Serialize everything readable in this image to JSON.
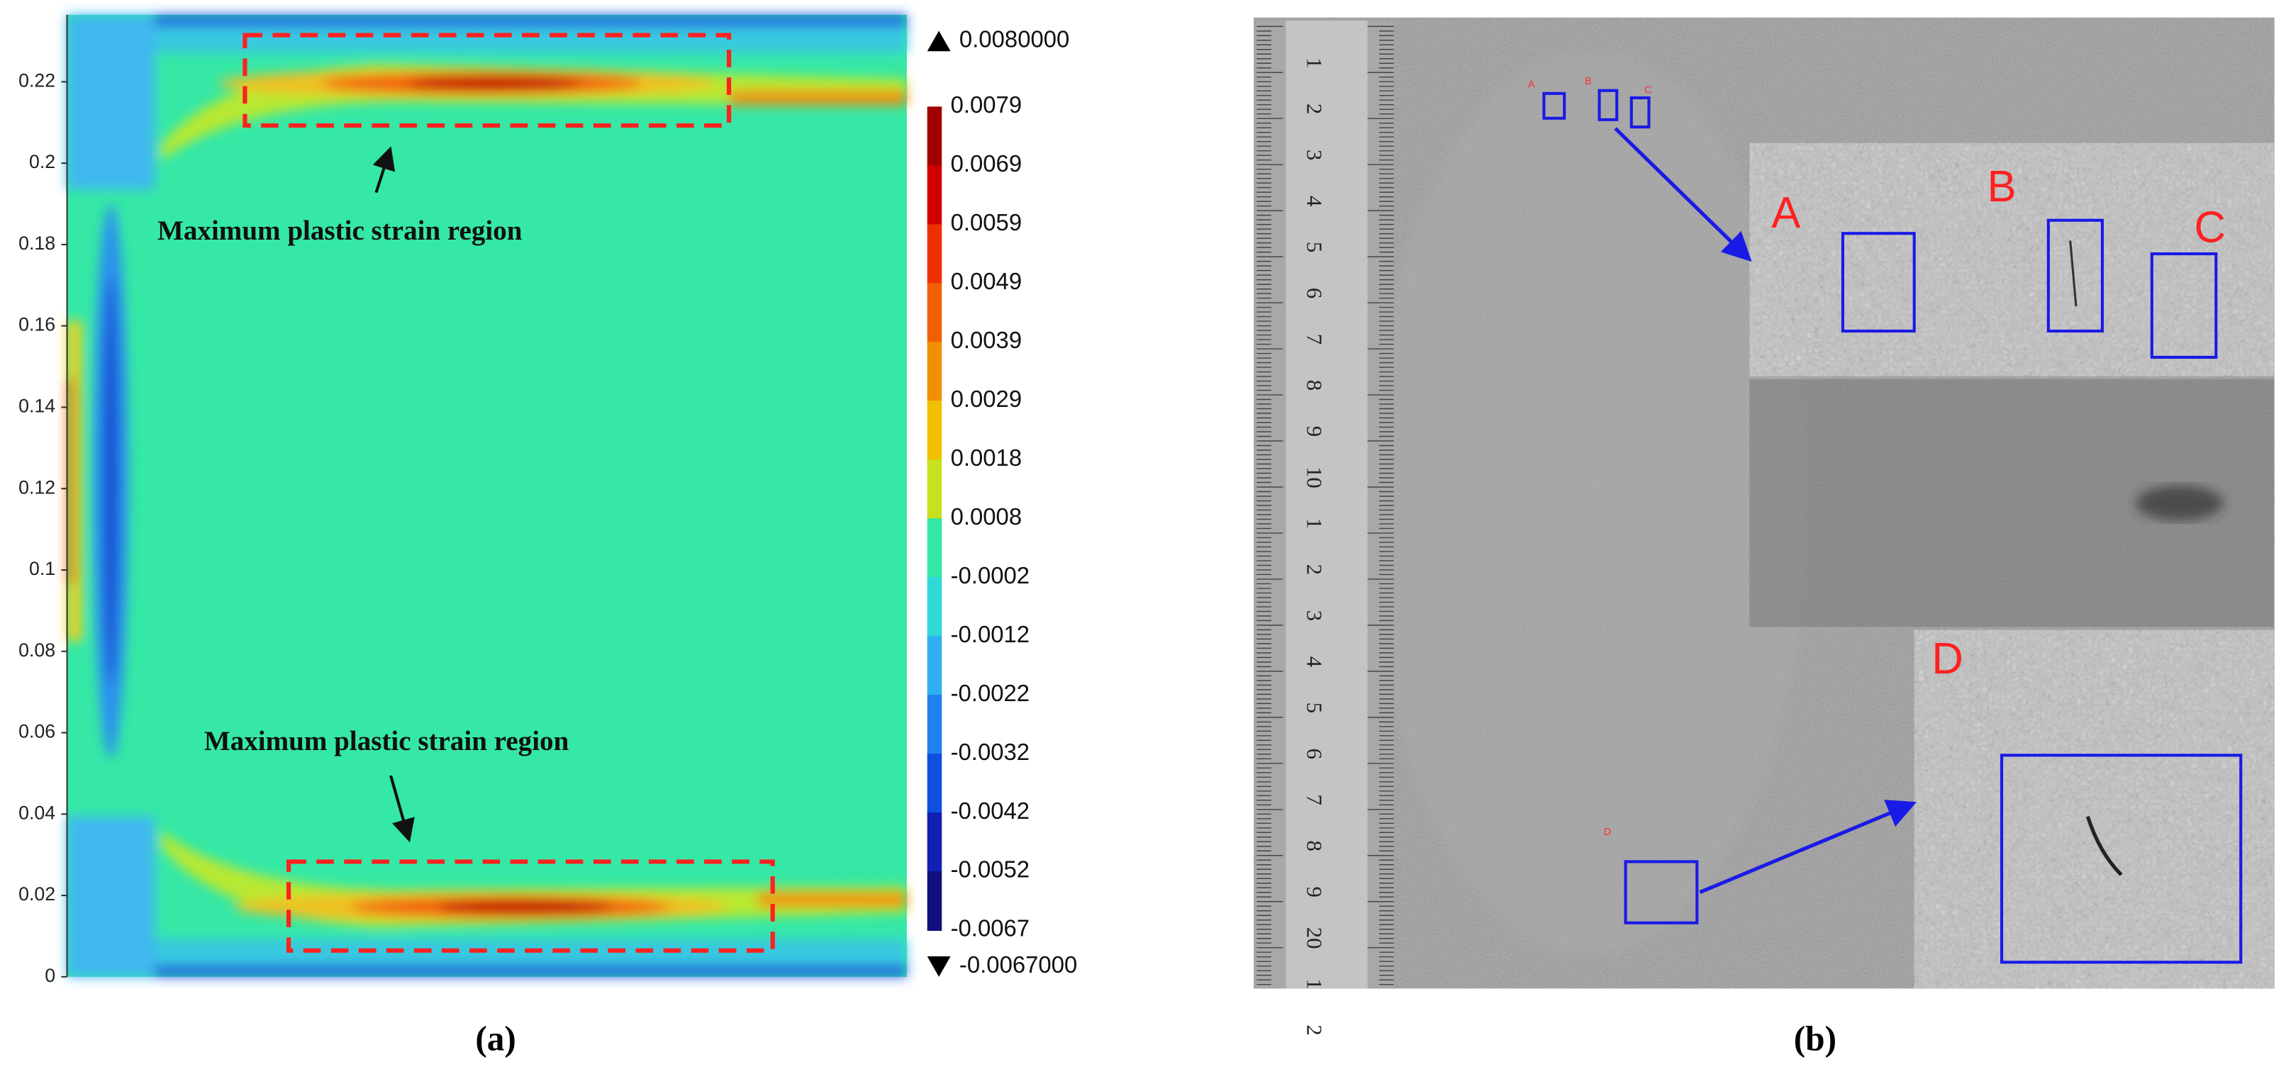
{
  "panel_a": {
    "y_ticks": [
      "0",
      "0.02",
      "0.04",
      "0.06",
      "0.08",
      "0.1",
      "0.12",
      "0.14",
      "0.16",
      "0.18",
      "0.2",
      "0.22"
    ],
    "colorbar": {
      "max": "0.0080000",
      "min": "-0.0067000",
      "levels": [
        "0.0079",
        "0.0069",
        "0.0059",
        "0.0049",
        "0.0039",
        "0.0029",
        "0.0018",
        "0.0008",
        "-0.0002",
        "-0.0012",
        "-0.0022",
        "-0.0032",
        "-0.0042",
        "-0.0052",
        "-0.0067"
      ]
    },
    "annotations": [
      "Maximum plastic strain region",
      "Maximum plastic strain region"
    ],
    "caption": "(a)"
  },
  "panel_b": {
    "ruler_labels": [
      "1",
      "2",
      "3",
      "4",
      "5",
      "6",
      "7",
      "8",
      "9",
      "10",
      "1",
      "2",
      "3",
      "4",
      "5",
      "6",
      "7",
      "8",
      "9",
      "20",
      "1",
      "2"
    ],
    "inset_labels": [
      "A",
      "B",
      "C",
      "D"
    ],
    "marker_labels": [
      "A",
      "B",
      "C",
      "D"
    ],
    "caption": "(b)"
  }
}
